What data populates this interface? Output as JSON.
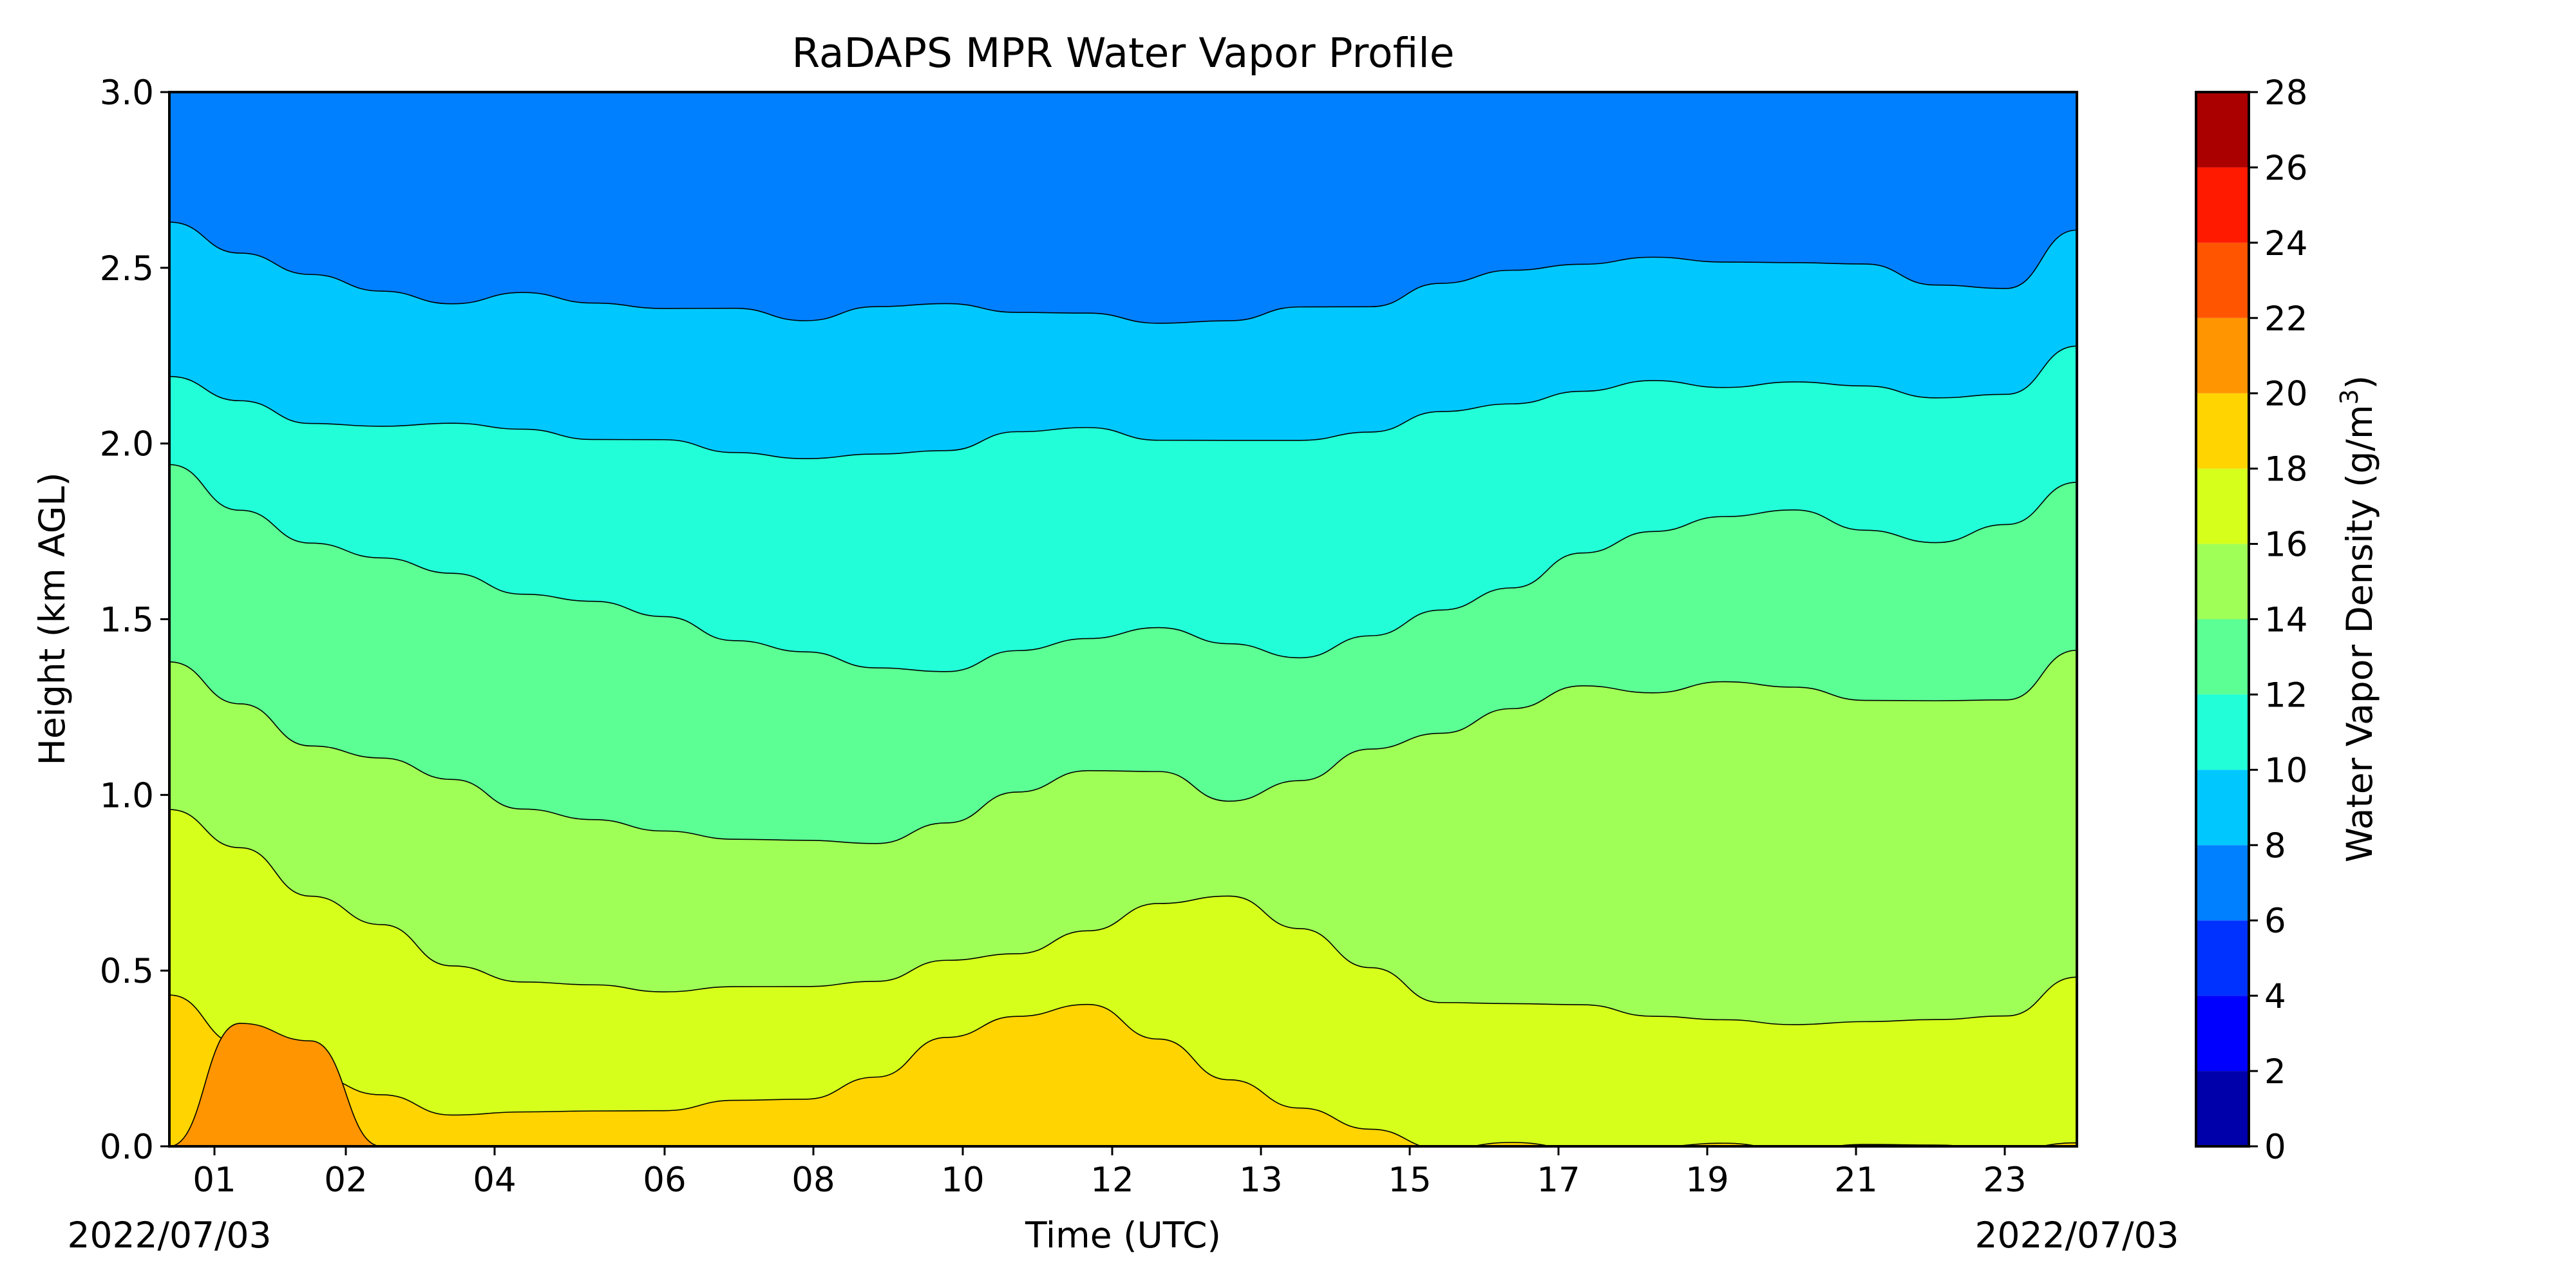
{
  "chart_data": {
    "type": "contour",
    "title": "RaDAPS MPR Water Vapor Profile",
    "xlabel": "Time (UTC)",
    "ylabel": "Height (km AGL)",
    "date_left": "2022/07/03",
    "date_right": "2022/07/03",
    "x_tick_labels": [
      "01",
      "02",
      "04",
      "06",
      "08",
      "10",
      "12",
      "13",
      "15",
      "17",
      "19",
      "21",
      "23"
    ],
    "y_ticks": [
      "0.0",
      "0.5",
      "1.0",
      "1.5",
      "2.0",
      "2.5",
      "3.0"
    ],
    "ylim": [
      0,
      3
    ],
    "colorbar": {
      "label": "Water Vapor Density (g/m",
      "label_sup": "3",
      "label_end": ")",
      "levels": [
        0,
        2,
        4,
        6,
        8,
        10,
        12,
        14,
        16,
        18,
        20,
        22,
        24,
        26,
        28
      ],
      "colors": [
        "#0000aa",
        "#0000ff",
        "#0032ff",
        "#0080ff",
        "#00c8ff",
        "#22ffd8",
        "#5bff94",
        "#a0ff56",
        "#d6ff1c",
        "#ffd400",
        "#ff9500",
        "#ff5500",
        "#ff1a00",
        "#aa0000"
      ]
    },
    "contour_boundaries": [
      {
        "level": 6,
        "color_below": "#00c8ff",
        "color_above": "#0080ff",
        "heights": [
          2.63,
          2.55,
          2.47,
          2.44,
          2.4,
          2.42,
          2.41,
          2.38,
          2.38,
          2.36,
          2.38,
          2.4,
          2.38,
          2.36,
          2.35,
          2.35,
          2.38,
          2.4,
          2.45,
          2.49,
          2.52,
          2.52,
          2.52,
          2.52,
          2.5,
          2.46,
          2.44,
          2.6
        ]
      },
      {
        "level": 8,
        "color_below": "#22ffd8",
        "color_above": "#00c8ff",
        "heights": [
          2.2,
          2.12,
          2.05,
          2.06,
          2.05,
          2.04,
          2.02,
          2.0,
          1.98,
          1.96,
          1.96,
          1.99,
          2.03,
          2.04,
          2.02,
          2.0,
          2.01,
          2.04,
          2.08,
          2.12,
          2.15,
          2.17,
          2.17,
          2.17,
          2.16,
          2.14,
          2.13,
          2.28
        ]
      },
      {
        "level": 10,
        "color_below": "#5bff94",
        "color_above": "#22ffd8",
        "heights": [
          1.95,
          1.8,
          1.72,
          1.68,
          1.62,
          1.58,
          1.55,
          1.5,
          1.45,
          1.4,
          1.36,
          1.36,
          1.4,
          1.45,
          1.48,
          1.42,
          1.4,
          1.45,
          1.52,
          1.6,
          1.68,
          1.75,
          1.8,
          1.8,
          1.76,
          1.72,
          1.76,
          1.9
        ]
      },
      {
        "level": 12,
        "color_below": "#a0ff56",
        "color_above": "#5bff94",
        "heights": [
          1.38,
          1.25,
          1.15,
          1.1,
          1.04,
          0.97,
          0.92,
          0.9,
          0.88,
          0.86,
          0.87,
          0.92,
          1.0,
          1.08,
          1.06,
          0.98,
          1.05,
          1.12,
          1.18,
          1.25,
          1.3,
          1.3,
          1.32,
          1.3,
          1.28,
          1.26,
          1.27,
          1.42
        ]
      },
      {
        "level": 14,
        "color_below": "#d6ff1c",
        "color_above": "#a0ff56",
        "heights": [
          0.95,
          0.85,
          0.72,
          0.62,
          0.52,
          0.47,
          0.45,
          0.45,
          0.45,
          0.45,
          0.48,
          0.52,
          0.55,
          0.62,
          0.68,
          0.72,
          0.62,
          0.5,
          0.42,
          0.4,
          0.4,
          0.38,
          0.35,
          0.35,
          0.36,
          0.35,
          0.38,
          0.48
        ]
      },
      {
        "level": 16,
        "color_below": "#ffd400",
        "color_above": "#d6ff1c",
        "heights": [
          0.42,
          0.3,
          0.2,
          0.14,
          0.1,
          0.09,
          0.1,
          0.11,
          0.12,
          0.14,
          0.2,
          0.3,
          0.38,
          0.4,
          0.3,
          0.2,
          0.1,
          0.05,
          0.0,
          0.0,
          0.0,
          0.0,
          0.0,
          0.0,
          0.0,
          0.0,
          0.0,
          0.0
        ]
      },
      {
        "level": 18,
        "color_below": "#ff9500",
        "color_above": "#ffd400",
        "heights": [
          0.0,
          0.35,
          0.3,
          0.0,
          0.0,
          0.0,
          0.0,
          0.0,
          0.0,
          0.0,
          0.0,
          0.0,
          0.0,
          0.0,
          0.0,
          0.0,
          0.0,
          0.0,
          0.0,
          0.0,
          0.0,
          0.0,
          0.0,
          0.0,
          0.0,
          0.0,
          0.0,
          0.0
        ]
      }
    ]
  }
}
